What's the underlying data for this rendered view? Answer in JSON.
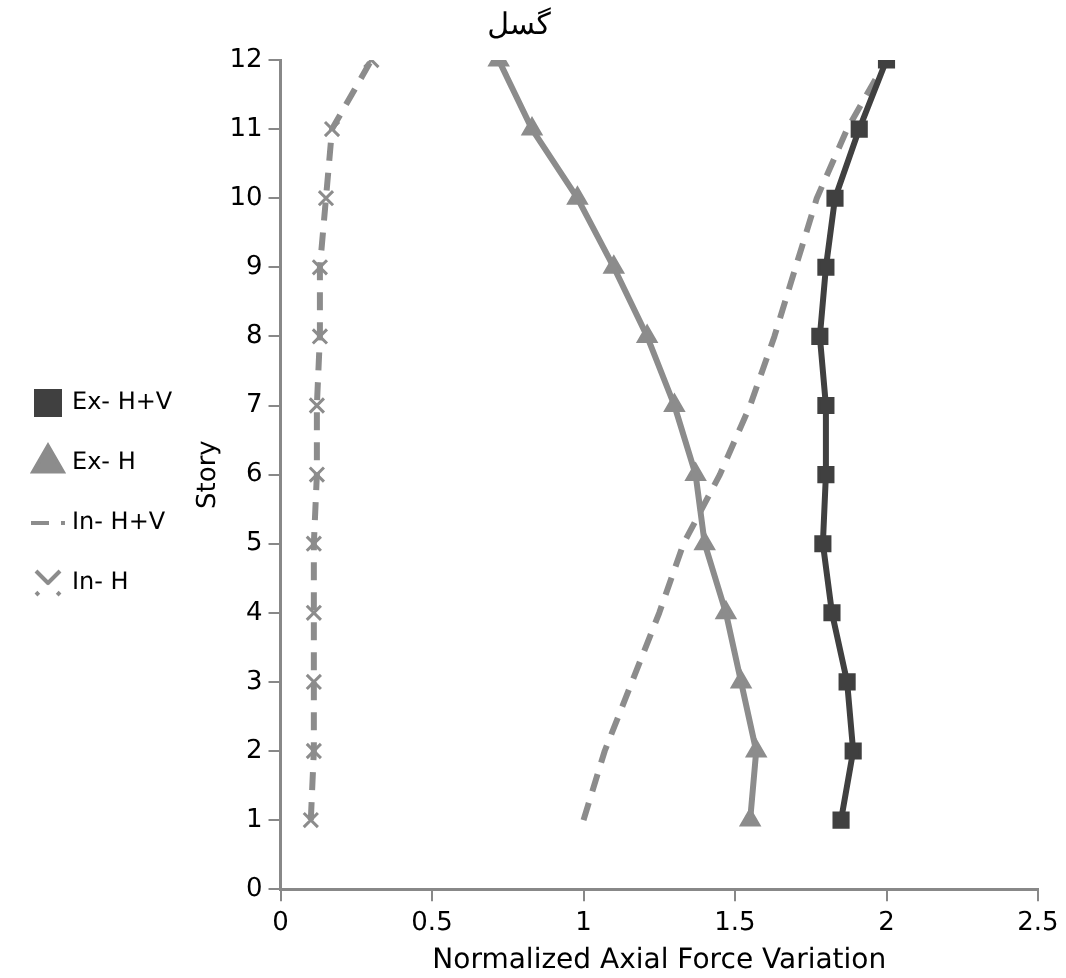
{
  "chart_data": {
    "type": "line",
    "title": "گسل",
    "xlabel": "Normalized Axial Force Variation",
    "ylabel": "Story",
    "xlim": [
      0,
      2.5
    ],
    "xticks": [
      0,
      0.5,
      1,
      1.5,
      2,
      2.5
    ],
    "ylim": [
      0,
      12
    ],
    "yticks": [
      0,
      1,
      2,
      3,
      4,
      5,
      6,
      7,
      8,
      9,
      10,
      11,
      12
    ],
    "grid": false,
    "legend": "left",
    "series": [
      {
        "name": "Ex- H+V",
        "color": "#404040",
        "marker": "square",
        "line_style": "solid",
        "x": [
          1.85,
          1.89,
          1.87,
          1.82,
          1.79,
          1.8,
          1.8,
          1.78,
          1.8,
          1.83,
          1.91,
          2.0
        ],
        "values": [
          1,
          2,
          3,
          4,
          5,
          6,
          7,
          8,
          9,
          10,
          11,
          12
        ]
      },
      {
        "name": "Ex- H",
        "color": "#8c8c8c",
        "marker": "triangle",
        "line_style": "solid",
        "x": [
          1.55,
          1.57,
          1.52,
          1.47,
          1.4,
          1.37,
          1.3,
          1.21,
          1.1,
          0.98,
          0.83,
          0.72
        ],
        "values": [
          1,
          2,
          3,
          4,
          5,
          6,
          7,
          8,
          9,
          10,
          11,
          12
        ]
      },
      {
        "name": "In- H+V",
        "color": "#8c8c8c",
        "marker": "none",
        "line_style": "dashed",
        "x": [
          1.0,
          1.07,
          1.16,
          1.25,
          1.33,
          1.45,
          1.55,
          1.63,
          1.7,
          1.77,
          1.87,
          2.0
        ],
        "values": [
          1,
          2,
          3,
          4,
          5,
          6,
          7,
          8,
          9,
          10,
          11,
          12
        ]
      },
      {
        "name": "In- H",
        "color": "#8c8c8c",
        "marker": "cross",
        "line_style": "dashed",
        "x": [
          0.1,
          0.11,
          0.11,
          0.11,
          0.11,
          0.12,
          0.12,
          0.13,
          0.13,
          0.15,
          0.17,
          0.3
        ],
        "values": [
          1,
          2,
          3,
          4,
          5,
          6,
          7,
          8,
          9,
          10,
          11,
          12
        ]
      }
    ]
  }
}
